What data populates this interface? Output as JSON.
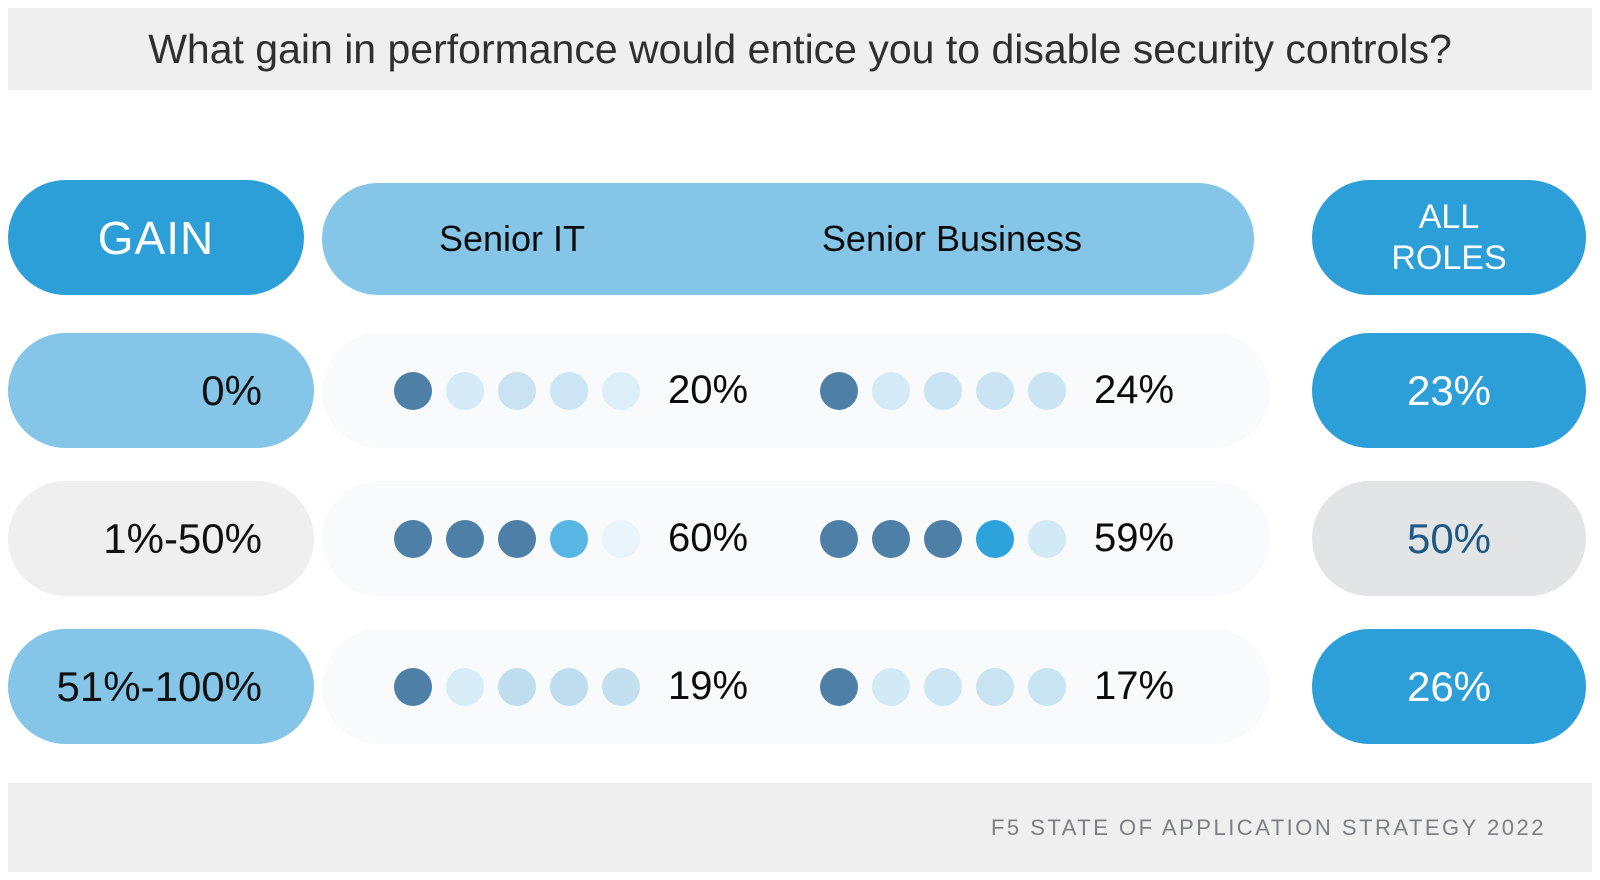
{
  "title": "What gain in performance would entice you to disable security controls?",
  "footer": {
    "source": "F5 STATE OF APPLICATION STRATEGY 2022"
  },
  "colors": {
    "accent_blue": "#2d9fd8",
    "light_blue": "#84c5e8",
    "gray_light": "#efefef",
    "gray_pill": "#e3e4e5",
    "navy_text": "#1e5a85",
    "dark_dot": "#4e80a7",
    "row_track_bg": "#f8fafb"
  },
  "header": {
    "gain_label": "GAIN",
    "senior_it_label": "Senior IT",
    "senior_business_label": "Senior Business",
    "all_roles_label": "ALL\nROLES"
  },
  "rows": [
    {
      "gain": "0%",
      "gain_style": "lightblue",
      "senior_it": {
        "value": "20%",
        "dots": [
          "#4e80a7",
          "#d6ebf7",
          "#c9e3f3",
          "#cce5f4",
          "#dceef8"
        ]
      },
      "senior_business": {
        "value": "24%",
        "dots": [
          "#4e80a7",
          "#d4eaf6",
          "#cbe4f3",
          "#cbe4f3",
          "#cbe4f3"
        ]
      },
      "all_roles": {
        "value": "23%",
        "style": "blue"
      }
    },
    {
      "gain": "1%-50%",
      "gain_style": "graylight",
      "senior_it": {
        "value": "60%",
        "dots": [
          "#4e80a7",
          "#4e80a7",
          "#4e80a7",
          "#57b6e3",
          "#eaf4fb"
        ]
      },
      "senior_business": {
        "value": "59%",
        "dots": [
          "#4e80a7",
          "#4e80a7",
          "#4e80a7",
          "#2ea2db",
          "#d2e9f6"
        ]
      },
      "all_roles": {
        "value": "50%",
        "style": "gray"
      }
    },
    {
      "gain": "51%-100%",
      "gain_style": "lightblue",
      "senior_it": {
        "value": "19%",
        "dots": [
          "#4e80a7",
          "#d9edf8",
          "#beddef",
          "#beddef",
          "#c3e0f1"
        ]
      },
      "senior_business": {
        "value": "17%",
        "dots": [
          "#4e80a7",
          "#d2e9f6",
          "#cde6f4",
          "#c8e3f2",
          "#c8e3f2"
        ]
      },
      "all_roles": {
        "value": "26%",
        "style": "blue"
      }
    }
  ],
  "chart_data": {
    "type": "table",
    "title": "What gain in performance would entice you to disable security controls?",
    "categories": [
      "0%",
      "1%-50%",
      "51%-100%"
    ],
    "series": [
      {
        "name": "Senior IT",
        "values": [
          20,
          60,
          19
        ]
      },
      {
        "name": "Senior Business",
        "values": [
          24,
          59,
          17
        ]
      },
      {
        "name": "All Roles",
        "values": [
          23,
          50,
          26
        ]
      }
    ],
    "value_unit": "%",
    "dot_scale": "each row cell shows 5 dots; filled (dark) dots approximate value in 20% increments",
    "source": "F5 STATE OF APPLICATION STRATEGY 2022"
  }
}
